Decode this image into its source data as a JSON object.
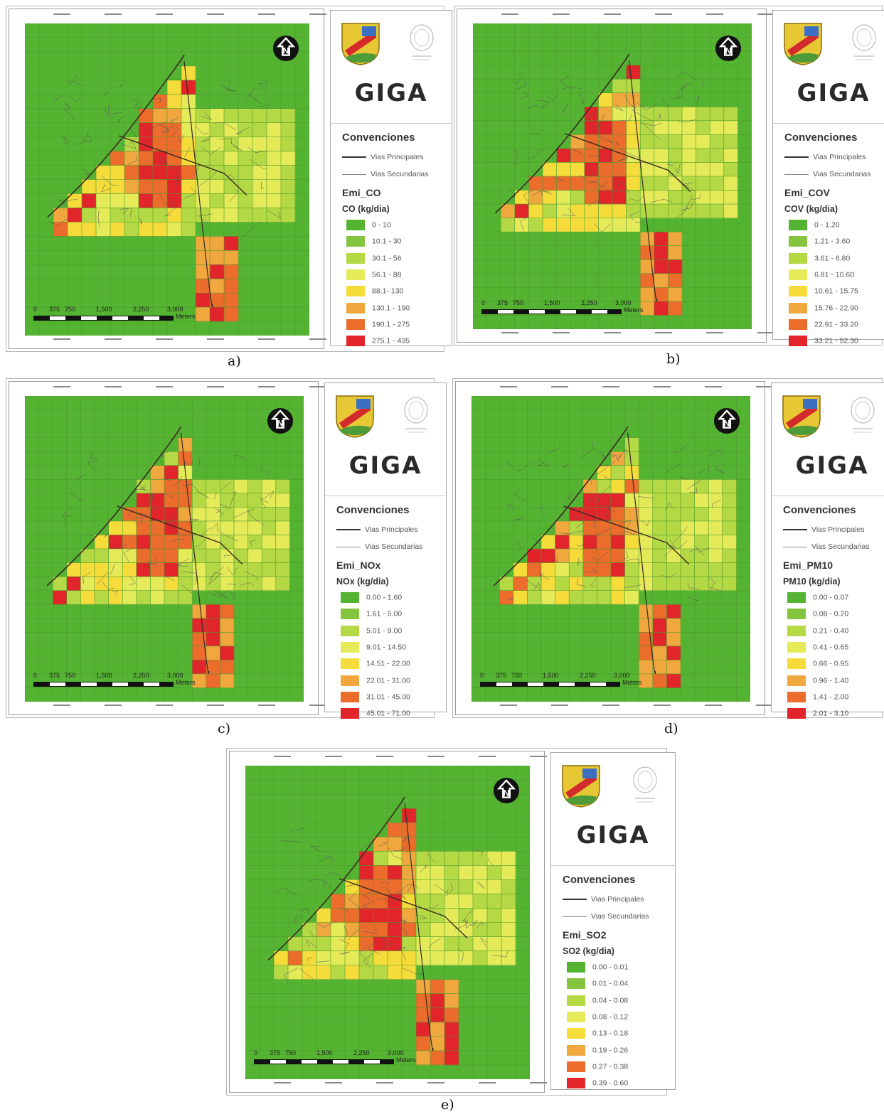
{
  "legend_common": {
    "conventions_title": "Convenciones",
    "main_roads": "Vias Principales",
    "secondary_roads": "Vias Secundarias",
    "logo_text": "GIGA"
  },
  "scale": {
    "labels": [
      "0",
      "375",
      "750",
      "1,500",
      "2,250",
      "3,000"
    ],
    "unit": "Meters"
  },
  "class_colors": [
    "#55b332",
    "#84c43e",
    "#b5d944",
    "#e4ea58",
    "#f5dc3b",
    "#f0a83e",
    "#ec6c2c",
    "#e1252b"
  ],
  "panels": [
    {
      "caption": "a)",
      "layer": "Emi_CO",
      "unit": "CO (kg/dia)",
      "classes": [
        "0 - 10",
        "10.1 - 30",
        "30.1 - 56",
        "56.1 - 88",
        "88.1- 130",
        "130.1 - 190",
        "190.1 - 275",
        "275.1 - 435"
      ]
    },
    {
      "caption": "b)",
      "layer": "Emi_COV",
      "unit": "COV (kg/dia)",
      "classes": [
        "0 - 1.20",
        "1.21 - 3.60",
        "3.61 - 6.80",
        "6.81 - 10.60",
        "10.61 - 15.75",
        "15.76 - 22.90",
        "22.91 - 33.20",
        "33.21 - 52.30"
      ]
    },
    {
      "caption": "c)",
      "layer": "Emi_NOx",
      "unit": "NOx (kg/dia)",
      "classes": [
        "0.00 - 1.60",
        "1.61 - 5.00",
        "5.01 - 9.00",
        "9.01 - 14.50",
        "14.51 - 22.00",
        "22.01 - 31.00",
        "31.01 - 45.00",
        "45.01 - 71.00"
      ]
    },
    {
      "caption": "d)",
      "layer": "Emi_PM10",
      "unit": "PM10 (kg/dia)",
      "classes": [
        "0.00 - 0.07",
        "0.08 - 0.20",
        "0.21 - 0.40",
        "0.41 - 0.65",
        "0.66 - 0.95",
        "0.96 - 1.40",
        "1.41 - 2.00",
        "2.01 - 3.10"
      ]
    },
    {
      "caption": "e)",
      "layer": "Emi_SO2",
      "unit": "SO2 (kg/dia)",
      "classes": [
        "0.00 - 0.01",
        "0.01 - 0.04",
        "0.04 - 0.08",
        "0.08 - 0.12",
        "0.13 - 0.18",
        "0.19 - 0.26",
        "0.27 - 0.38",
        "0.39 - 0.60"
      ]
    }
  ]
}
